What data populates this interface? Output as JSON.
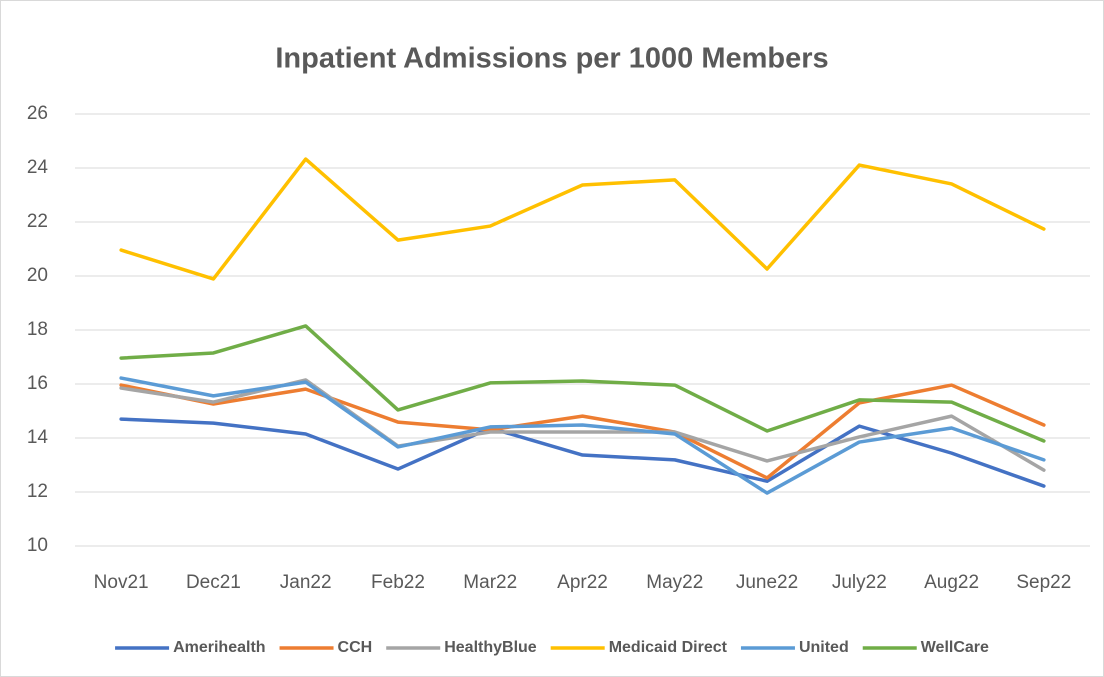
{
  "chart_data": {
    "type": "line",
    "title": "Inpatient Admissions per 1000 Members",
    "categories": [
      "Nov21",
      "Dec21",
      "Jan22",
      "Feb22",
      "Mar22",
      "Apr22",
      "May22",
      "June22",
      "July22",
      "Aug22",
      "Sep22"
    ],
    "series": [
      {
        "name": "Amerihealth",
        "color": "#4472c4",
        "values": [
          14.7,
          14.55,
          14.15,
          12.85,
          14.37,
          13.37,
          13.19,
          12.4,
          14.44,
          13.44,
          12.22
        ]
      },
      {
        "name": "CCH",
        "color": "#ed7d31",
        "values": [
          15.96,
          15.26,
          15.81,
          14.59,
          14.3,
          14.81,
          14.22,
          12.52,
          15.3,
          15.96,
          14.48
        ]
      },
      {
        "name": "HealthyBlue",
        "color": "#a5a5a5",
        "values": [
          15.85,
          15.33,
          16.15,
          13.7,
          14.22,
          14.22,
          14.22,
          13.15,
          14.04,
          14.81,
          12.81
        ]
      },
      {
        "name": "Medicaid Direct",
        "color": "#ffc000",
        "values": [
          20.96,
          19.89,
          24.33,
          21.33,
          21.85,
          23.37,
          23.56,
          20.26,
          24.11,
          23.41,
          21.74
        ]
      },
      {
        "name": "United",
        "color": "#5b9bd5",
        "values": [
          16.22,
          15.56,
          16.07,
          13.67,
          14.41,
          14.48,
          14.15,
          11.96,
          13.85,
          14.37,
          13.19
        ]
      },
      {
        "name": "WellCare",
        "color": "#70ad47",
        "values": [
          16.96,
          17.15,
          18.15,
          15.04,
          16.04,
          16.11,
          15.96,
          14.26,
          15.41,
          15.33,
          13.89
        ]
      }
    ],
    "ylim": [
      10,
      26
    ],
    "yticks": [
      10,
      12,
      14,
      16,
      18,
      20,
      22,
      24,
      26
    ],
    "grid": true,
    "legend": "bottom"
  }
}
